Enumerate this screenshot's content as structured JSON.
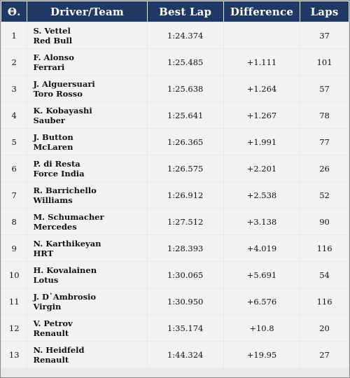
{
  "table": {
    "headers": {
      "pos": "Θ.",
      "driver": "Driver/Team",
      "best_lap": "Best Lap",
      "difference": "Difference",
      "laps": "Laps"
    },
    "rows": [
      {
        "pos": "1",
        "driver": "S. Vettel",
        "team": "Red Bull",
        "best_lap": "1:24.374",
        "difference": "",
        "laps": "37"
      },
      {
        "pos": "2",
        "driver": "F. Alonso",
        "team": "Ferrari",
        "best_lap": "1:25.485",
        "difference": "+1.111",
        "laps": "101"
      },
      {
        "pos": "3",
        "driver": "J. Alguersuari",
        "team": "Toro Rosso",
        "best_lap": "1:25.638",
        "difference": "+1.264",
        "laps": "57"
      },
      {
        "pos": "4",
        "driver": "K. Kobayashi",
        "team": "Sauber",
        "best_lap": "1:25.641",
        "difference": "+1.267",
        "laps": "78"
      },
      {
        "pos": "5",
        "driver": "J. Button",
        "team": "McLaren",
        "best_lap": "1:26.365",
        "difference": "+1.991",
        "laps": "77"
      },
      {
        "pos": "6",
        "driver": "P. di Resta",
        "team": "Force India",
        "best_lap": "1:26.575",
        "difference": "+2.201",
        "laps": "26"
      },
      {
        "pos": "7",
        "driver": "R. Barrichello",
        "team": "Williams",
        "best_lap": "1:26.912",
        "difference": "+2.538",
        "laps": "52"
      },
      {
        "pos": "8",
        "driver": "M. Schumacher",
        "team": "Mercedes",
        "best_lap": "1:27.512",
        "difference": "+3.138",
        "laps": "90"
      },
      {
        "pos": "9",
        "driver": "N. Karthikeyan",
        "team": "HRT",
        "best_lap": "1:28.393",
        "difference": "+4.019",
        "laps": "116"
      },
      {
        "pos": "10",
        "driver": "H. Kovalainen",
        "team": "Lotus",
        "best_lap": "1:30.065",
        "difference": "+5.691",
        "laps": "54"
      },
      {
        "pos": "11",
        "driver": "J. D᾽Ambrosio",
        "team": "Virgin",
        "best_lap": "1:30.950",
        "difference": "+6.576",
        "laps": "116"
      },
      {
        "pos": "12",
        "driver": "V. Petrov",
        "team": "Renault",
        "best_lap": "1:35.174",
        "difference": "+10.8",
        "laps": "20"
      },
      {
        "pos": "13",
        "driver": "N. Heidfeld",
        "team": "Renault",
        "best_lap": "1:44.324",
        "difference": "+19.95",
        "laps": "27"
      }
    ]
  }
}
